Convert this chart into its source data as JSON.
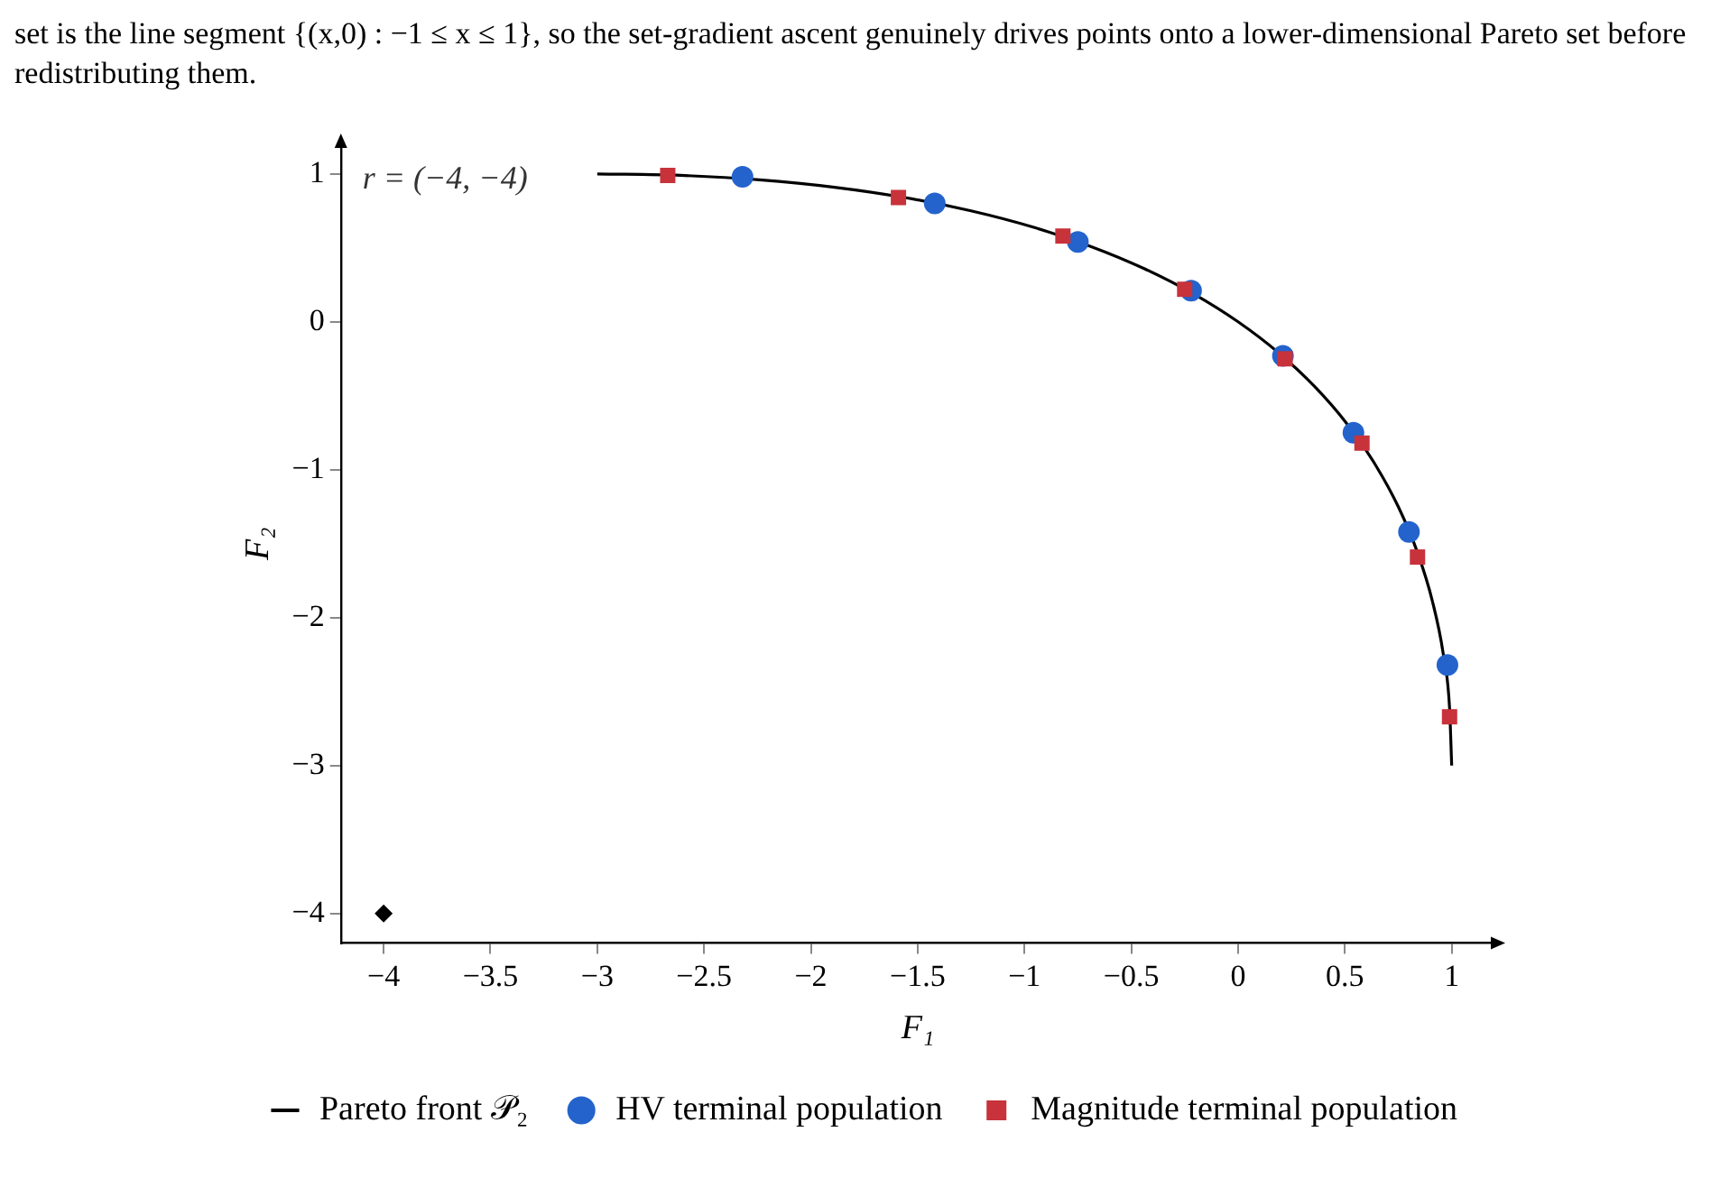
{
  "chart_data": {
    "type": "scatter",
    "xlabel": "F₁",
    "ylabel": "F₂",
    "annotations": [
      "set is the line segment {(x,0) : −1 ≤ x ≤ 1}, so the set-gradient ascent genuinely drives points onto a lower-dimensional Pareto set before redistributing them.",
      "r = (−4, −4)"
    ],
    "xlim": [
      -4.2,
      1.2
    ],
    "ylim": [
      -4.2,
      1.2
    ],
    "xticks": [
      -4,
      -3.5,
      -3,
      -2.5,
      -2,
      -1.5,
      -1,
      -0.5,
      0,
      0.5,
      1
    ],
    "yticks": [
      -4,
      -3,
      -2,
      -1,
      0,
      1
    ],
    "grid": false,
    "legend": "bottom",
    "series": [
      {
        "name": "Pareto front 𝒫₂",
        "type": "line",
        "color": "#000000",
        "marker": "none",
        "line_style": "solid",
        "x": [
          -3,
          -2.61,
          -2.24,
          -1.89,
          -1.56,
          -1.25,
          -0.96,
          -0.69,
          -0.44,
          -0.21,
          0,
          0.19,
          0.36,
          0.51,
          0.64,
          0.75,
          0.84,
          0.91,
          0.96,
          0.99,
          1
        ],
        "values": [
          1,
          0.99,
          0.96,
          0.91,
          0.84,
          0.75,
          0.64,
          0.51,
          0.36,
          0.19,
          0,
          -0.21,
          -0.44,
          -0.69,
          -0.96,
          -1.25,
          -1.56,
          -1.89,
          -2.24,
          -2.61,
          -3
        ]
      },
      {
        "name": "HV terminal population",
        "color": "#2463cc",
        "marker": "circle",
        "x": [
          -2.32,
          -1.42,
          -0.75,
          -0.22,
          0.21,
          0.54,
          0.8,
          0.98
        ],
        "values": [
          0.98,
          0.8,
          0.54,
          0.21,
          -0.23,
          -0.75,
          -1.42,
          -2.32
        ]
      },
      {
        "name": "Magnitude terminal population",
        "color": "#c8323a",
        "marker": "square",
        "x": [
          -2.67,
          -1.59,
          -0.82,
          -0.25,
          0.22,
          0.58,
          0.84,
          0.99
        ],
        "values": [
          0.99,
          0.84,
          0.58,
          0.22,
          -0.25,
          -0.82,
          -1.59,
          -2.67
        ]
      },
      {
        "color": "#000000",
        "marker": "diamond",
        "x": [
          -4
        ],
        "values": [
          -4
        ]
      }
    ]
  }
}
